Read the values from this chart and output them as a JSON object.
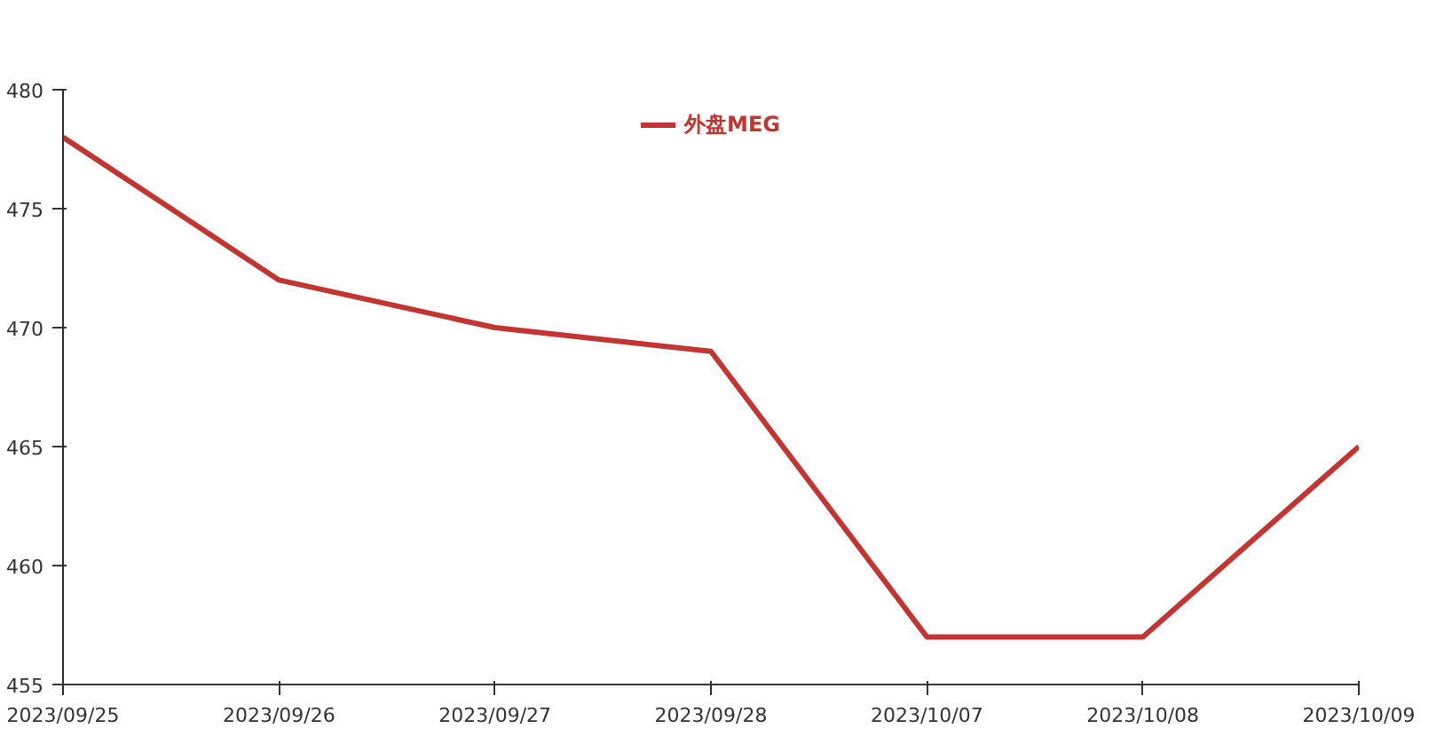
{
  "chart_data": {
    "type": "line",
    "categories": [
      "2023/09/25",
      "2023/09/26",
      "2023/09/27",
      "2023/09/28",
      "2023/10/07",
      "2023/10/08",
      "2023/10/09"
    ],
    "series": [
      {
        "name": "外盘MEG",
        "color": "#c23531",
        "values": [
          478,
          472,
          470,
          469,
          457,
          457,
          465
        ]
      }
    ],
    "ylim": [
      455,
      480
    ],
    "yticks": [
      455,
      460,
      465,
      470,
      475,
      480
    ],
    "grid": false,
    "legend": "top",
    "marker": "none",
    "line_style": "solid"
  }
}
